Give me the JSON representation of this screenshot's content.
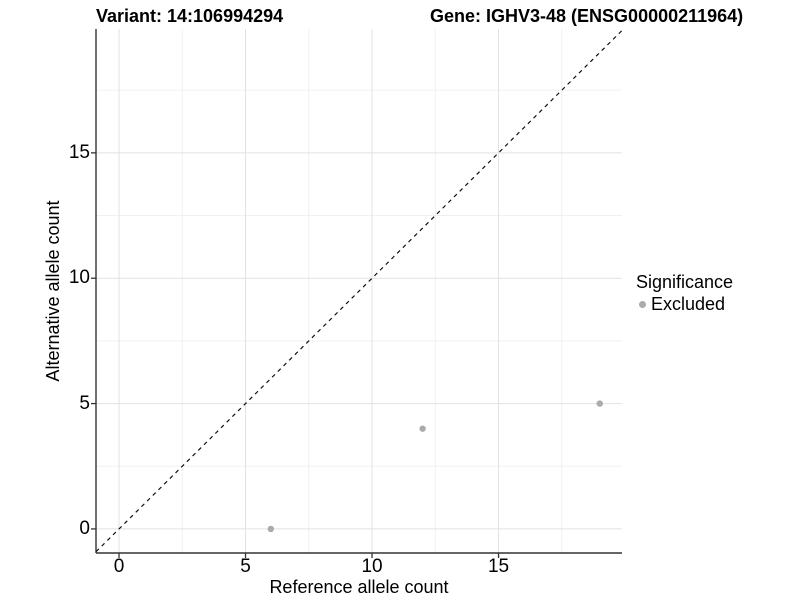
{
  "chart_data": {
    "type": "scatter",
    "title_left": "Variant: 14:106994294",
    "title_right": "Gene: IGHV3-48 (ENSG00000211964)",
    "xlabel": "Reference allele count",
    "ylabel": "Alternative allele count",
    "xlim": [
      -0.91,
      19.88
    ],
    "ylim": [
      -0.96,
      19.94
    ],
    "xticks": [
      0,
      5,
      10,
      15
    ],
    "yticks": [
      0,
      5,
      10,
      15
    ],
    "xminor": [
      2.5,
      7.5,
      12.5,
      17.5
    ],
    "yminor": [
      2.5,
      7.5,
      12.5,
      17.5
    ],
    "grid": "major+minor",
    "identity_line": {
      "style": "dashed",
      "slope": 1,
      "intercept": 0,
      "color": "#111111"
    },
    "series": [
      {
        "name": "Excluded",
        "marker": "circle",
        "color": "#ababab",
        "points": [
          [
            6,
            0
          ],
          [
            12,
            4
          ],
          [
            19,
            5
          ]
        ]
      }
    ],
    "legend": {
      "title": "Significance",
      "position": "right",
      "entries": [
        {
          "label": "Excluded",
          "color": "#ababab",
          "marker": "circle"
        }
      ]
    },
    "colors": {
      "grid_major": "#e2e2e2",
      "grid_minor": "#f0f0f0",
      "axis": "#333333",
      "text": "#000000"
    }
  }
}
